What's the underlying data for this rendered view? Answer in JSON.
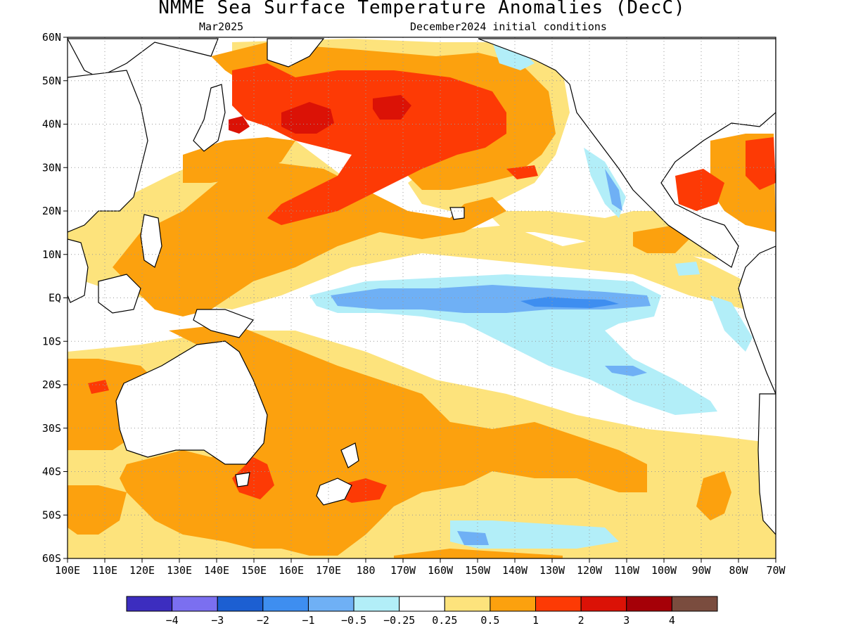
{
  "title": "NMME Sea Surface Temperature Anomalies (DecC)",
  "subtitle_left": "Mar2025",
  "subtitle_right": "December2024 initial conditions",
  "lat_labels": [
    "60N",
    "50N",
    "40N",
    "30N",
    "20N",
    "10N",
    "EQ",
    "10S",
    "20S",
    "30S",
    "40S",
    "50S",
    "60S"
  ],
  "lon_labels": [
    "100E",
    "110E",
    "120E",
    "130E",
    "140E",
    "150E",
    "160E",
    "170E",
    "180",
    "170W",
    "160W",
    "150W",
    "140W",
    "130W",
    "120W",
    "110W",
    "100W",
    "90W",
    "80W",
    "70W"
  ],
  "colorbar": {
    "colors": [
      "#3c2dbf",
      "#7b6ff0",
      "#1c5fd2",
      "#3e8ef0",
      "#6fb0f5",
      "#b2eef8",
      "#ffffff",
      "#fde37c",
      "#fca10e",
      "#fd3a05",
      "#db1206",
      "#a50007",
      "#7a4c3e"
    ],
    "labels": [
      "−4",
      "−3",
      "−2",
      "−1",
      "−0.5",
      "−0.25",
      "0.25",
      "0.5",
      "1",
      "2",
      "3",
      "4"
    ]
  },
  "colors": {
    "land": "#ffffff",
    "coast": "#000000",
    "grid": "#9a9a9a"
  }
}
